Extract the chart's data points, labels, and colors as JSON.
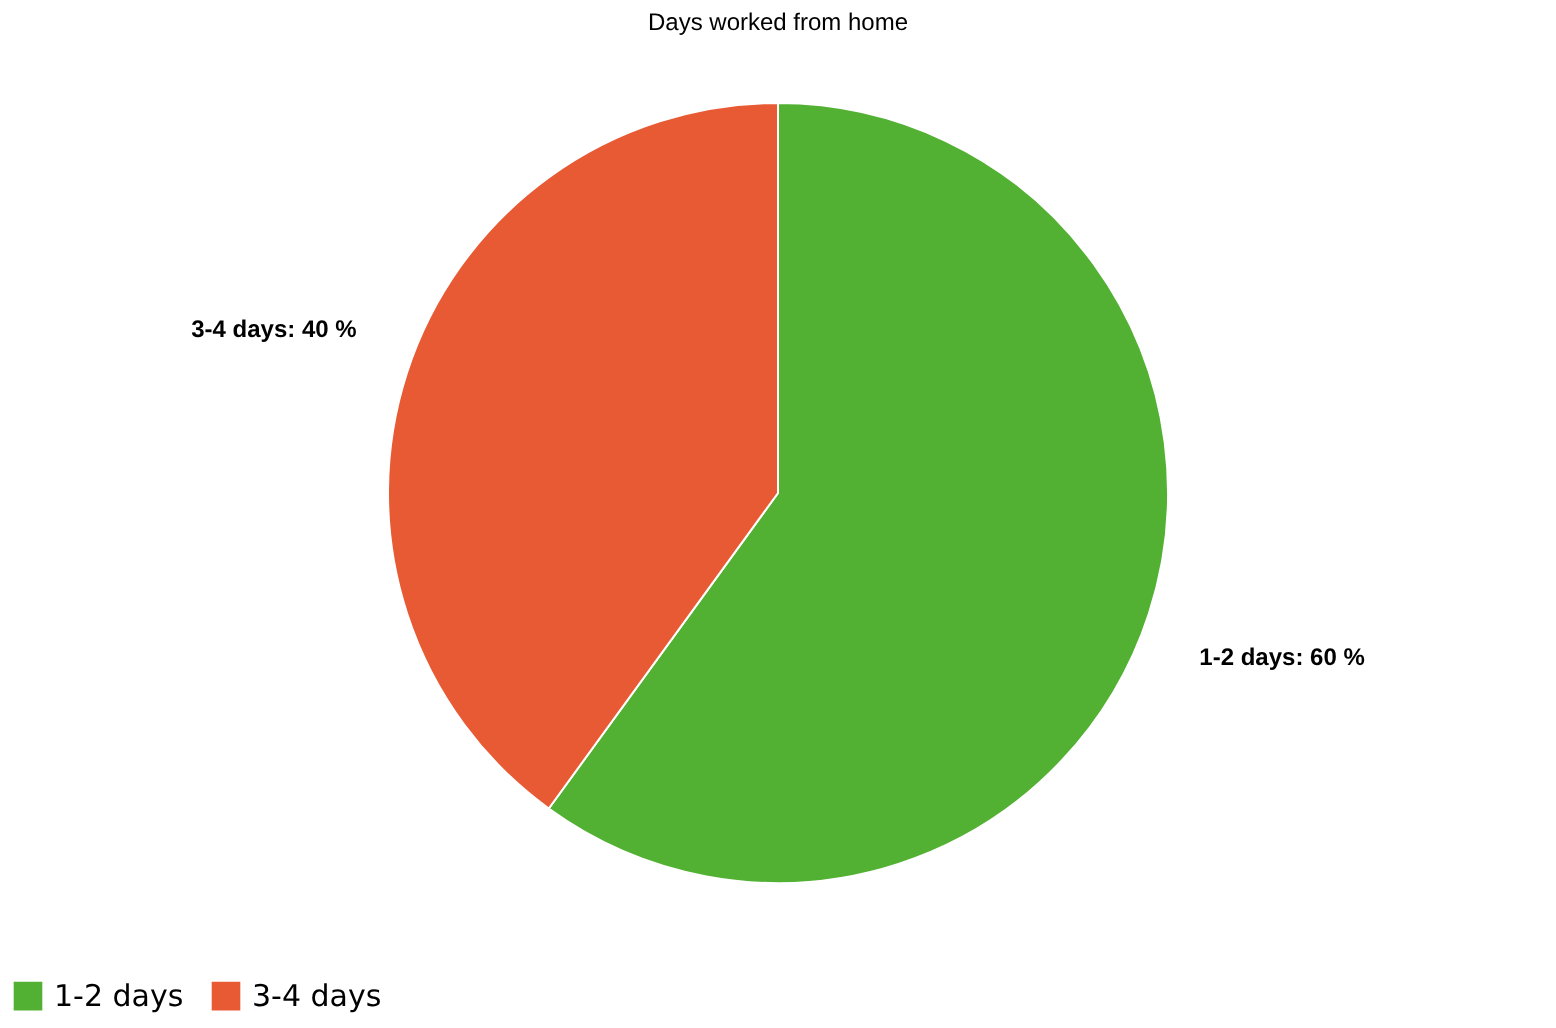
{
  "chart_data": {
    "type": "pie",
    "title": "Days worked from home",
    "categories": [
      "1-2 days",
      "3-4 days"
    ],
    "values": [
      60,
      40
    ],
    "colors": [
      "#52b132",
      "#e85a34"
    ],
    "value_labels": [
      "1-2 days: 60 %",
      "3-4 days: 40 %"
    ],
    "legend": "bottom"
  }
}
